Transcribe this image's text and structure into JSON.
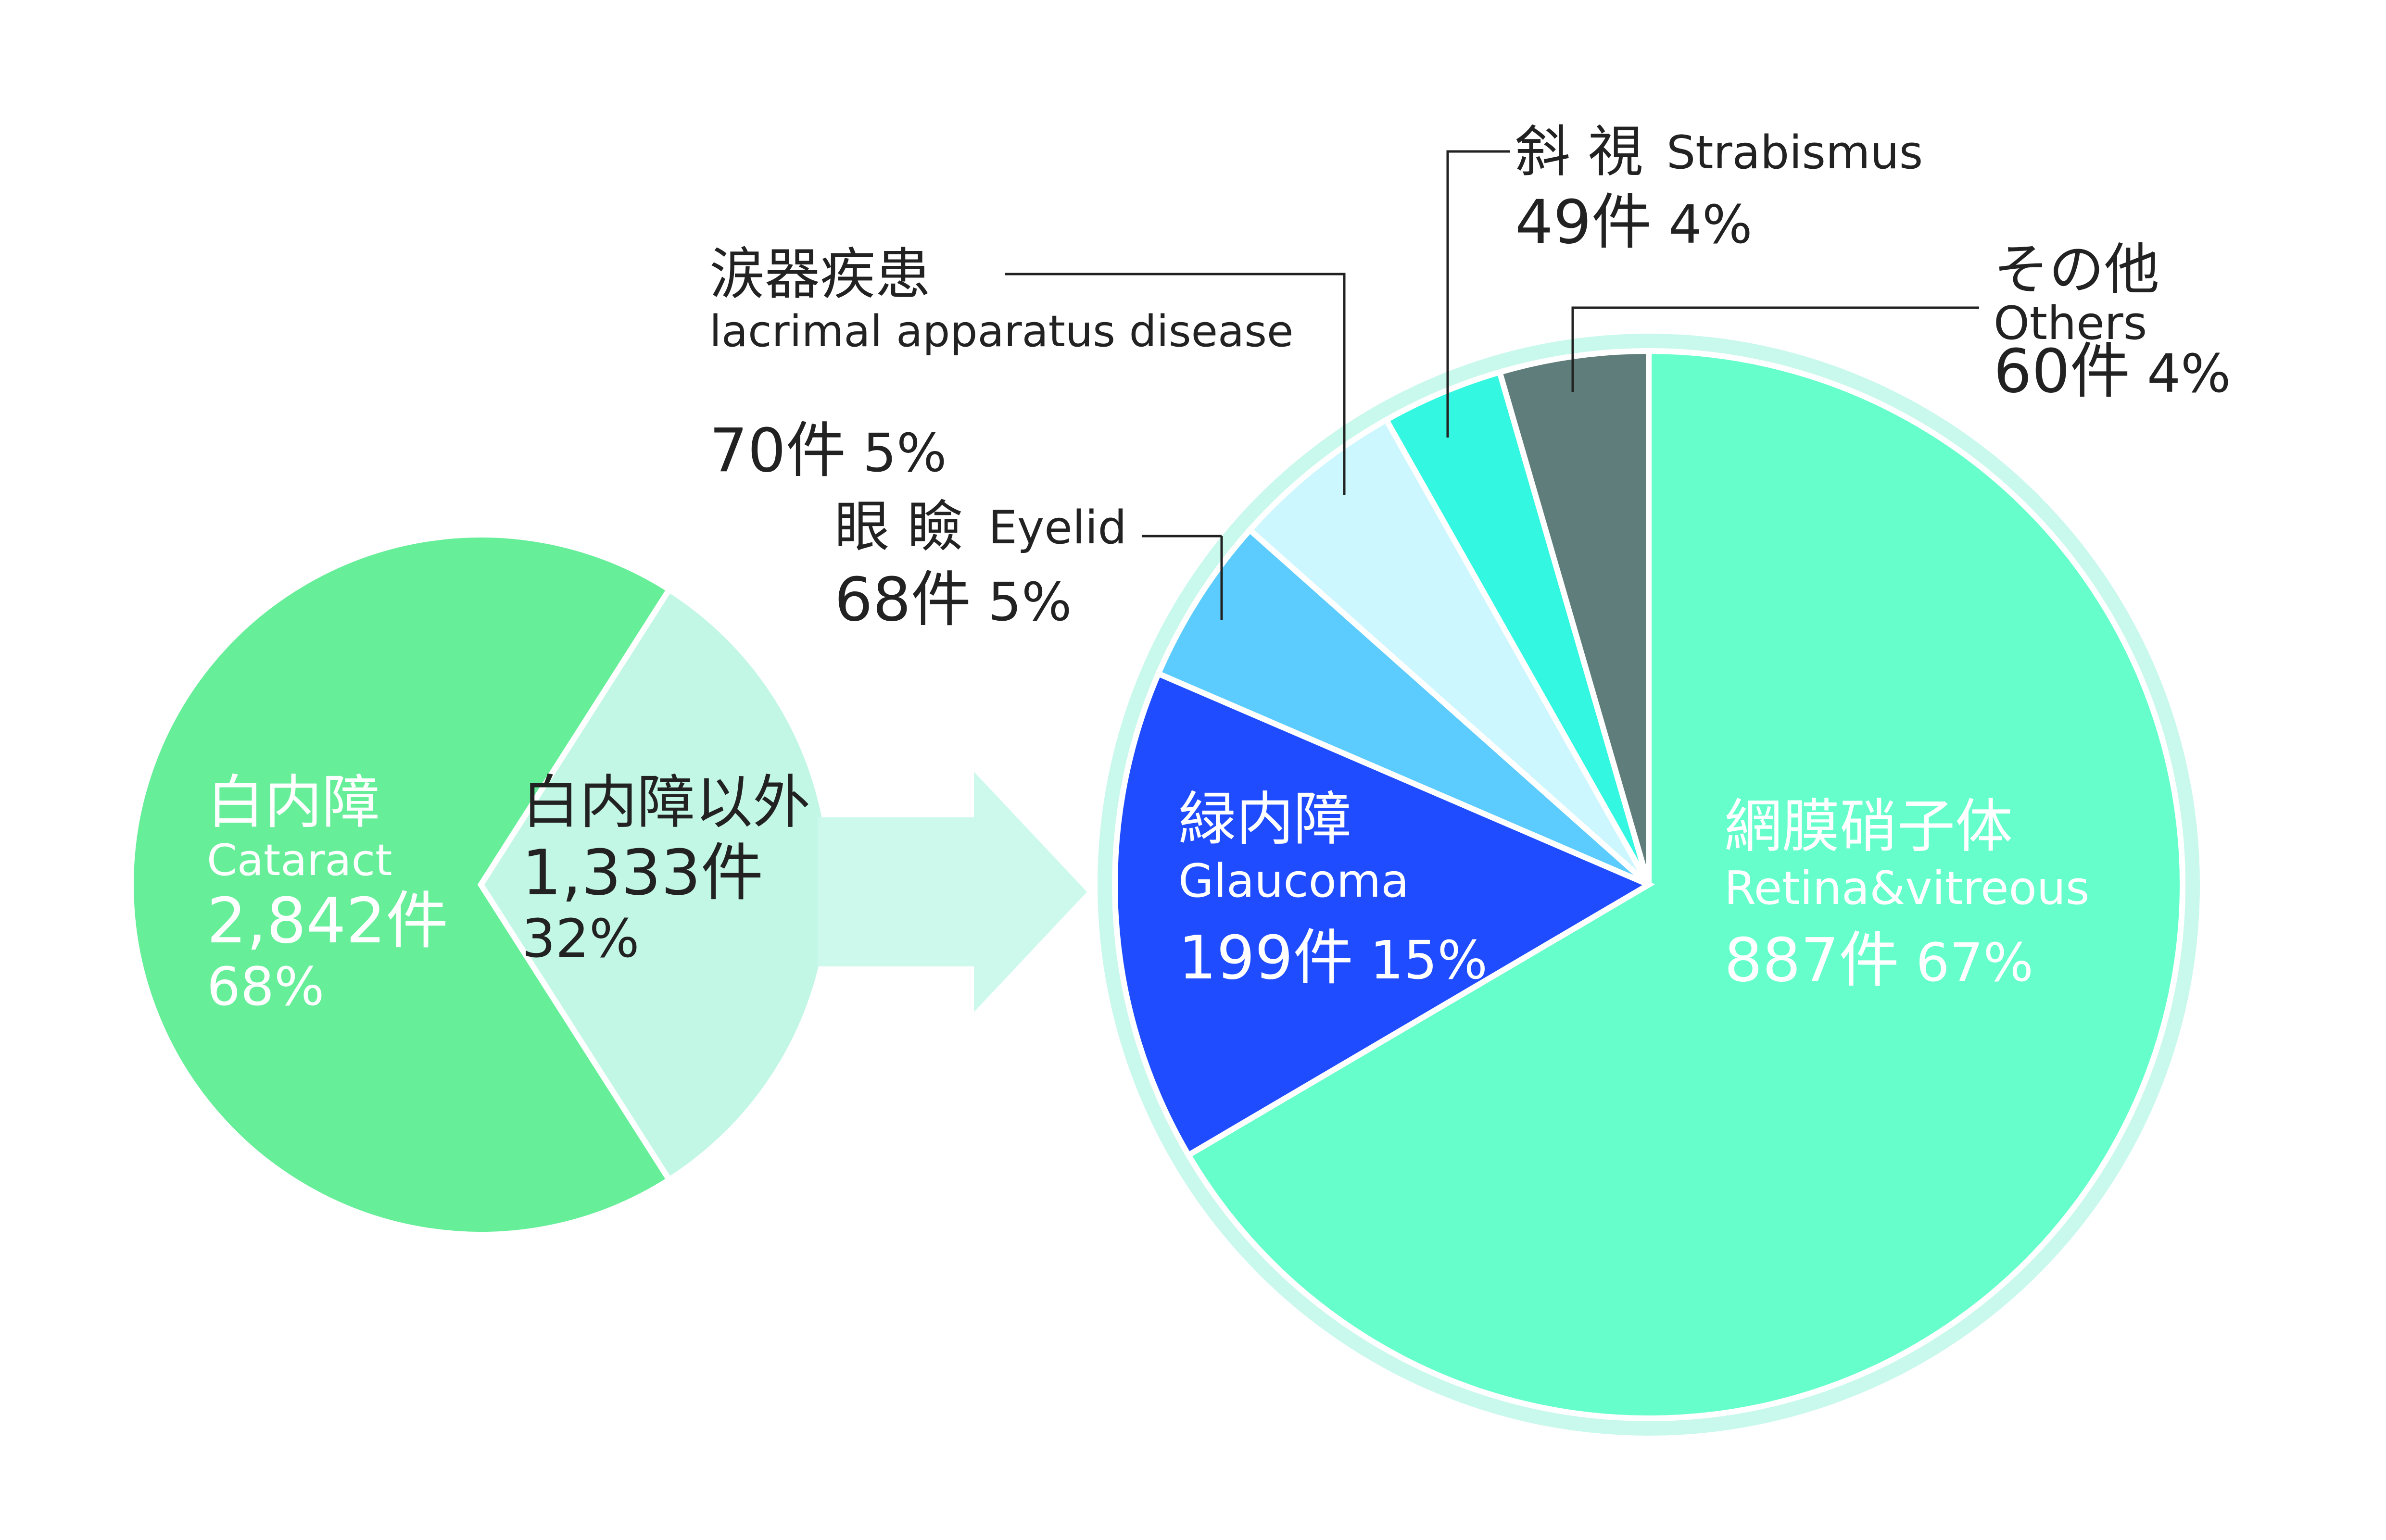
{
  "colors": {
    "cataract": "#66EE99",
    "non_cataract": "#C2F7E6",
    "arrow": "#CCF9EC",
    "retina": "#66FFCC",
    "glaucoma": "#1F4CFF",
    "eyelid": "#5CCCFF",
    "lacrimal": "#CCF7FF",
    "strabismus": "#33F7E0",
    "others": "#5F7D7A",
    "ring": "#C9F8EC",
    "leader": "#222222"
  },
  "chart_data": [
    {
      "type": "pie",
      "unit": "件",
      "slices": [
        {
          "key": "cataract",
          "label_ja": "白内障",
          "label_en": "Cataract",
          "count": 2842,
          "count_text": "2,842",
          "percent": 68
        },
        {
          "key": "non_cataract",
          "label_ja": "白内障以外",
          "label_en": "",
          "count": 1333,
          "count_text": "1,333",
          "percent": 32
        }
      ]
    },
    {
      "type": "pie",
      "unit": "件",
      "slices": [
        {
          "key": "retina",
          "label_ja": "網膜硝子体",
          "label_en": "Retina&vitreous",
          "count": 887,
          "count_text": "887",
          "percent": 67
        },
        {
          "key": "glaucoma",
          "label_ja": "緑内障",
          "label_en": "Glaucoma",
          "count": 199,
          "count_text": "199",
          "percent": 15
        },
        {
          "key": "eyelid",
          "label_ja": "眼 瞼",
          "label_en": "Eyelid",
          "count": 68,
          "count_text": "68",
          "percent": 5
        },
        {
          "key": "lacrimal",
          "label_ja": "涙器疾患",
          "label_en": "lacrimal apparatus disease",
          "count": 70,
          "count_text": "70",
          "percent": 5
        },
        {
          "key": "strabismus",
          "label_ja": "斜 視",
          "label_en": "Strabismus",
          "count": 49,
          "count_text": "49",
          "percent": 4
        },
        {
          "key": "others",
          "label_ja": "その他",
          "label_en": "Others",
          "count": 60,
          "count_text": "60",
          "percent": 4
        }
      ]
    }
  ]
}
